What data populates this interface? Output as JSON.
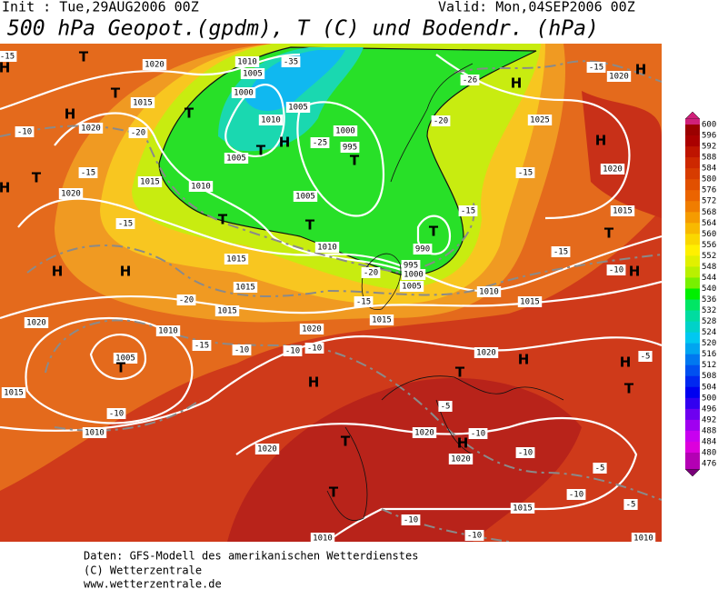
{
  "header": {
    "init": "Init : Tue,29AUG2006 00Z",
    "valid": "Valid: Mon,04SEP2006 00Z",
    "title": "500 hPa Geopot.(gpdm), T (C) und Bodendr. (hPa)"
  },
  "map": {
    "labels": [
      1020,
      1015,
      1020,
      -20,
      -15,
      1015,
      1020,
      -15,
      "H",
      "H",
      "T",
      "T",
      "H",
      "H",
      "T",
      "T",
      "T",
      "H",
      1010,
      -35,
      1005,
      1000,
      1010,
      1005,
      -25,
      1000,
      995,
      "T",
      1005,
      1010,
      1005,
      "T",
      "T",
      1010,
      1015,
      -20,
      995,
      1000,
      1005,
      990,
      "T",
      -15,
      -20,
      -26,
      "H",
      1025,
      -15,
      1020,
      1015,
      "H",
      "T",
      -15,
      "H",
      -10,
      1015,
      1010,
      -15,
      1015,
      1020,
      -10,
      -10,
      1015,
      -20,
      1015,
      1010,
      -15,
      -10,
      1020,
      1005,
      "T",
      1015,
      -10,
      1010,
      1020,
      "H",
      "T",
      "T",
      1020,
      "H",
      1020,
      -10,
      -5,
      -10,
      -5,
      -10,
      -5,
      1015,
      -10,
      -10,
      1010,
      1010,
      "H",
      "T",
      "H",
      "T",
      -5,
      1020,
      -15,
      1020,
      "H",
      "H",
      -15,
      -10
    ]
  },
  "colorbar": {
    "labels": [
      600,
      596,
      592,
      588,
      584,
      580,
      576,
      572,
      568,
      564,
      560,
      556,
      552,
      548,
      544,
      540,
      536,
      532,
      528,
      524,
      520,
      516,
      512,
      508,
      504,
      500,
      496,
      492,
      488,
      484,
      480,
      476
    ],
    "colors": [
      "#9b0000",
      "#aa0000",
      "#be1400",
      "#cd2800",
      "#d73c00",
      "#e15000",
      "#eb6400",
      "#f07d00",
      "#f59b00",
      "#f8b900",
      "#fad700",
      "#fff000",
      "#e1f000",
      "#b9f000",
      "#78f000",
      "#00f000",
      "#00e664",
      "#00dca0",
      "#00d2c8",
      "#00c8f0",
      "#00a5f0",
      "#0078f0",
      "#0050f0",
      "#0028f0",
      "#0000f0",
      "#3200f0",
      "#6e00f0",
      "#a000f0",
      "#c800f0",
      "#dc00dc",
      "#b400b4"
    ]
  },
  "footer": {
    "lines": [
      "Daten: GFS-Modell des amerikanischen Wetterdienstes",
      "(C) Wetterzentrale",
      "www.wetterzentrale.de"
    ]
  }
}
